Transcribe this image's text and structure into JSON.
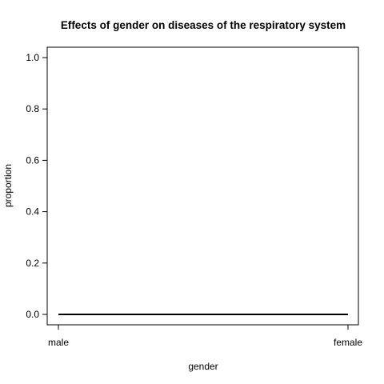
{
  "chart_data": {
    "type": "line",
    "title": "Effects of gender on diseases of the respiratory system",
    "xlabel": "gender",
    "ylabel": "proportion",
    "categories": [
      "male",
      "female"
    ],
    "series": [
      {
        "values": [
          0.0,
          0.0
        ]
      }
    ],
    "ylim": [
      0.0,
      1.0
    ],
    "yticks": [
      0.0,
      0.2,
      0.4,
      0.6,
      0.8,
      1.0
    ],
    "ytick_labels": [
      "0.0",
      "0.2",
      "0.4",
      "0.6",
      "0.8",
      "1.0"
    ],
    "grid": false,
    "line_color": "#000000"
  }
}
